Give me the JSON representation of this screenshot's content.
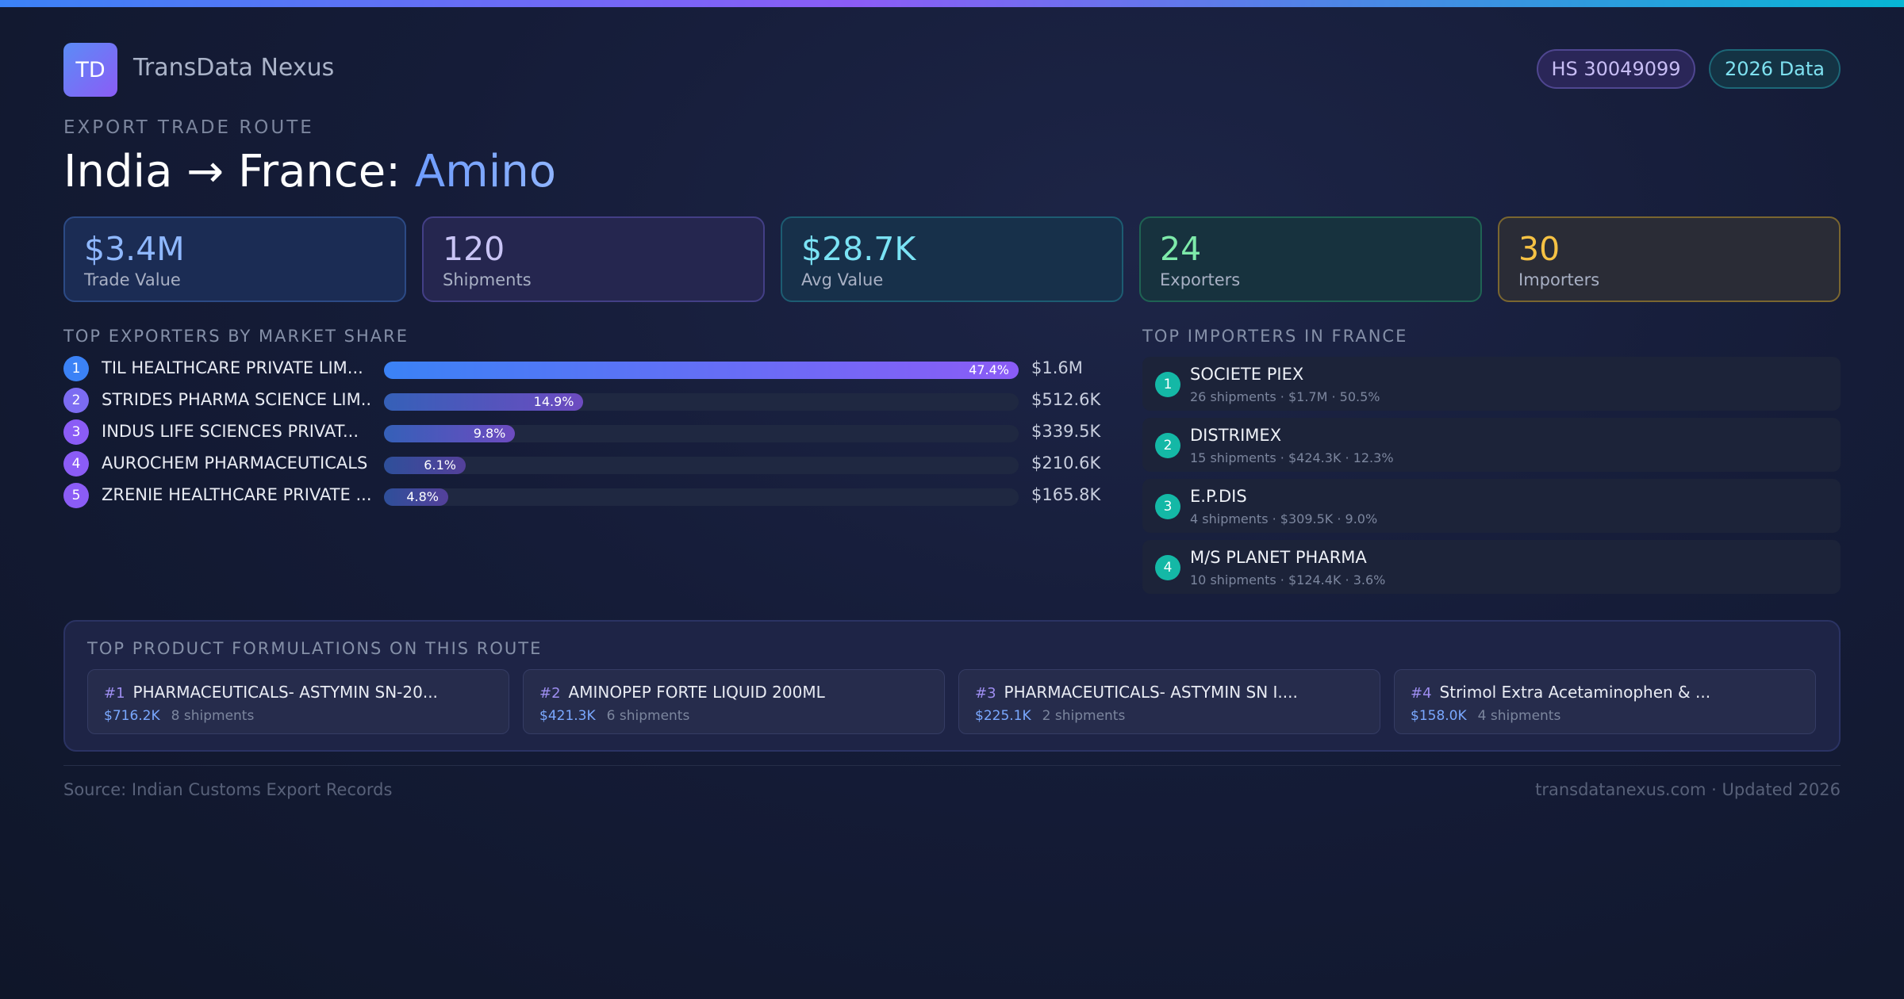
{
  "brand": {
    "logo_text": "TD",
    "name": "TransData Nexus"
  },
  "badges": {
    "hs_code": "HS 30049099",
    "year": "2026 Data"
  },
  "header": {
    "eyebrow": "EXPORT TRADE ROUTE",
    "title_route": "India → France: ",
    "title_product": "Amino"
  },
  "stats": [
    {
      "value": "$3.4M",
      "label": "Trade Value"
    },
    {
      "value": "120",
      "label": "Shipments"
    },
    {
      "value": "$28.7K",
      "label": "Avg Value"
    },
    {
      "value": "24",
      "label": "Exporters"
    },
    {
      "value": "30",
      "label": "Importers"
    }
  ],
  "exporters": {
    "heading": "TOP EXPORTERS BY MARKET SHARE",
    "items": [
      {
        "rank": "1",
        "name": "TIL HEALTHCARE PRIVATE LIM...",
        "share": 47.4,
        "share_label": "47.4%",
        "value": "$1.6M"
      },
      {
        "rank": "2",
        "name": "STRIDES PHARMA SCIENCE LIM...",
        "share": 14.9,
        "share_label": "14.9%",
        "value": "$512.6K"
      },
      {
        "rank": "3",
        "name": "INDUS LIFE SCIENCES PRIVAT...",
        "share": 9.8,
        "share_label": "9.8%",
        "value": "$339.5K"
      },
      {
        "rank": "4",
        "name": "AUROCHEM PHARMACEUTICALS (...",
        "share": 6.1,
        "share_label": "6.1%",
        "value": "$210.6K"
      },
      {
        "rank": "5",
        "name": "ZRENIE HEALTHCARE PRIVATE ...",
        "share": 4.8,
        "share_label": "4.8%",
        "value": "$165.8K"
      }
    ],
    "rank_colors": [
      "#3b82f6",
      "#7c6cf2",
      "#8b5cf6",
      "#8b5cf6",
      "#8b5cf6"
    ]
  },
  "importers": {
    "heading": "TOP IMPORTERS IN FRANCE",
    "items": [
      {
        "rank": "1",
        "name": "SOCIETE PIEX",
        "details": "26 shipments · $1.7M · 50.5%"
      },
      {
        "rank": "2",
        "name": "DISTRIMEX",
        "details": "15 shipments · $424.3K · 12.3%"
      },
      {
        "rank": "3",
        "name": "E.P.DIS",
        "details": "4 shipments · $309.5K · 9.0%"
      },
      {
        "rank": "4",
        "name": "M/S PLANET PHARMA",
        "details": "10 shipments · $124.4K · 3.6%"
      }
    ]
  },
  "products": {
    "heading": "TOP PRODUCT FORMULATIONS ON THIS ROUTE",
    "items": [
      {
        "num": "#1",
        "name": "PHARMACEUTICALS- ASTYMIN SN-20...",
        "value": "$716.2K",
        "shipments": "8 shipments"
      },
      {
        "num": "#2",
        "name": "AMINOPEP FORTE LIQUID 200ML",
        "value": "$421.3K",
        "shipments": "6 shipments"
      },
      {
        "num": "#3",
        "name": "PHARMACEUTICALS- ASTYMIN SN I....",
        "value": "$225.1K",
        "shipments": "2 shipments"
      },
      {
        "num": "#4",
        "name": "Strimol Extra Acetaminophen & ...",
        "value": "$158.0K",
        "shipments": "4 shipments"
      }
    ]
  },
  "footer": {
    "source": "Source: Indian Customs Export Records",
    "site": "transdatanexus.com · Updated 2026"
  }
}
